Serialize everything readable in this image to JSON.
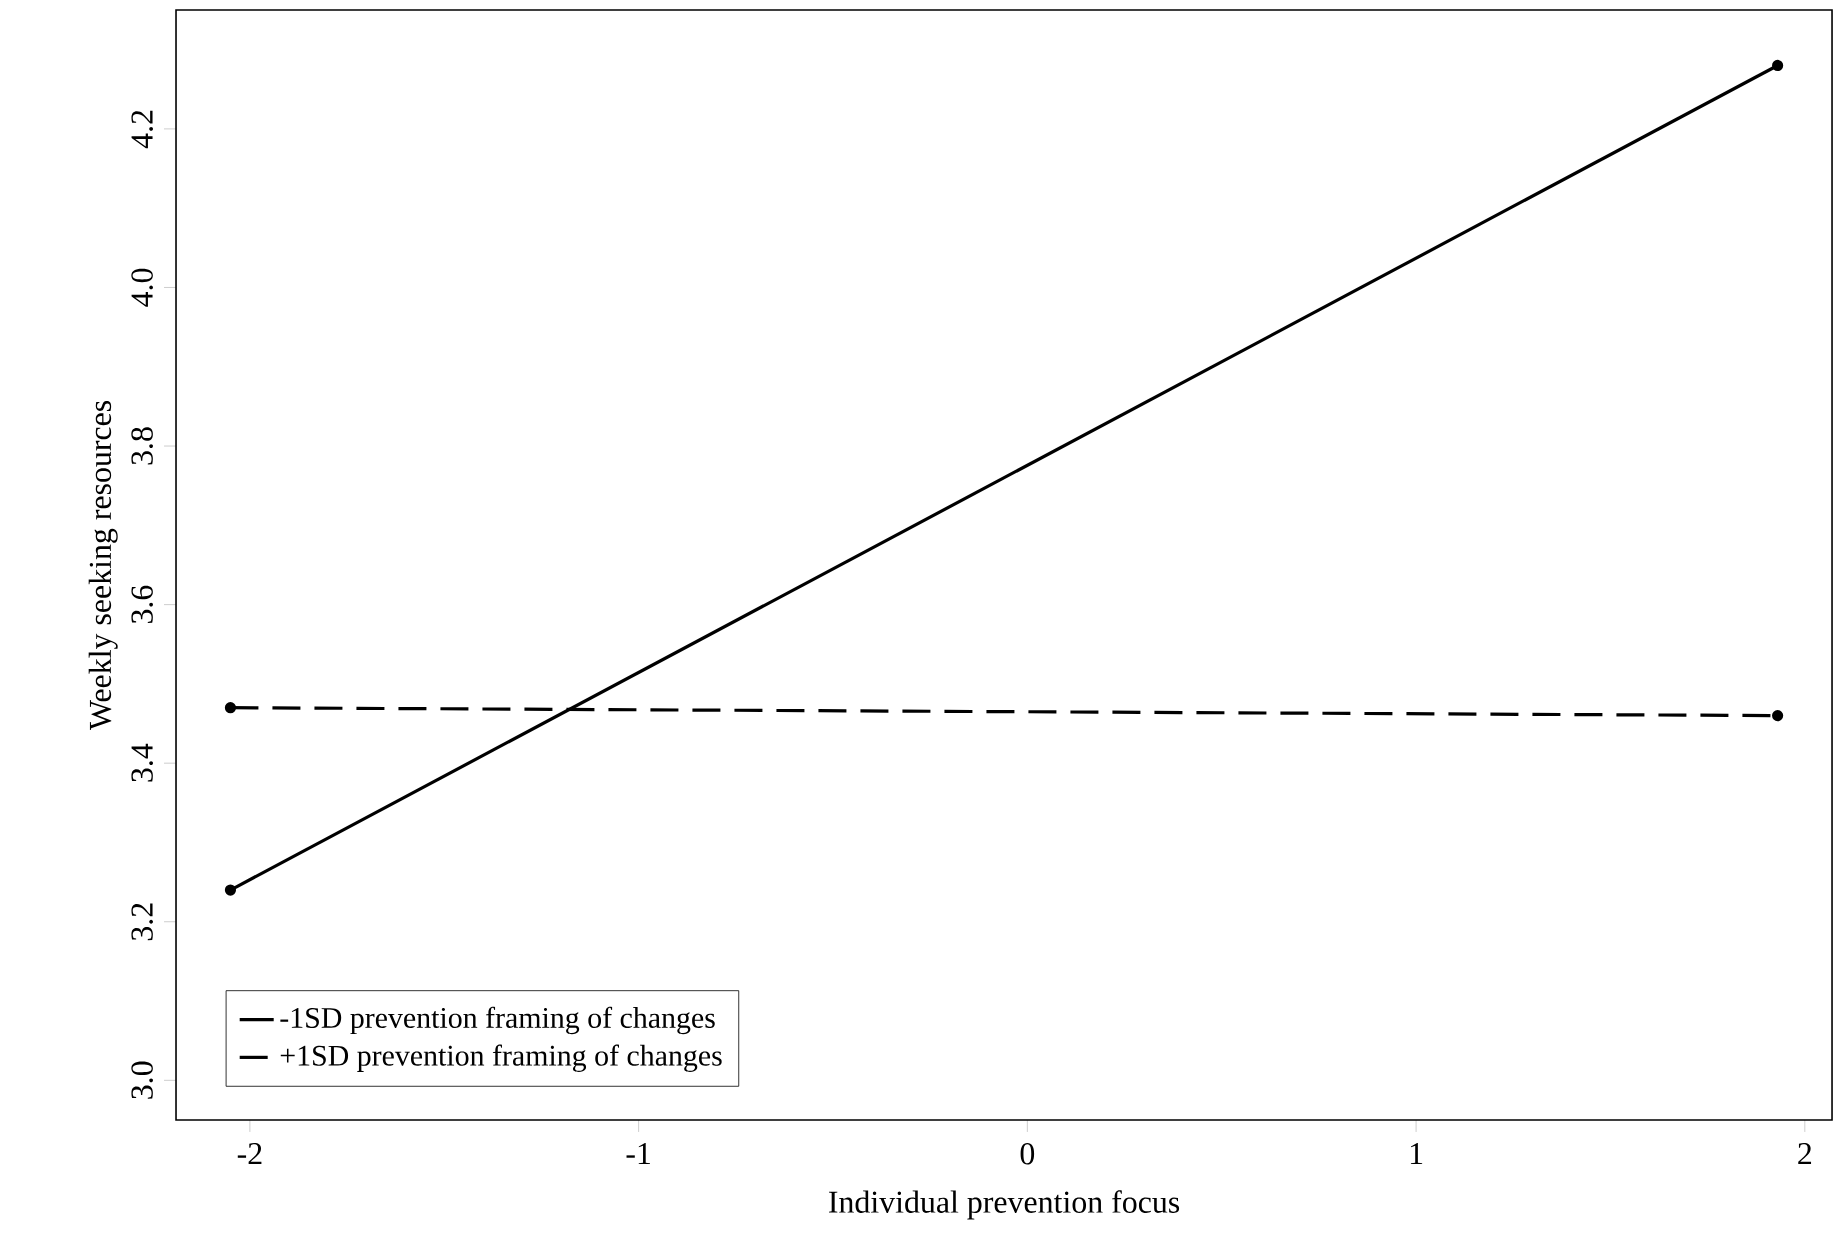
{
  "chart_data": {
    "type": "line",
    "xlabel": "Individual prevention focus",
    "ylabel": "Weekly seeking resources",
    "x": [
      -2.05,
      1.93
    ],
    "series": [
      {
        "name": "-1SD prevention framing of changes",
        "color": "#000000",
        "line_style": "solid",
        "values": [
          3.24,
          4.28
        ]
      },
      {
        "name": "+1SD prevention framing of changes",
        "color": "#000000",
        "line_style": "dashed",
        "values": [
          3.47,
          3.46
        ]
      }
    ],
    "xlim": [
      -2.19,
      2.07
    ],
    "ylim": [
      2.95,
      4.35
    ],
    "xticks": [
      -2,
      -1,
      0,
      1,
      2
    ],
    "yticks": [
      {
        "value": 3.0,
        "label": "3.0"
      },
      3.2,
      3.4,
      3.6,
      3.8,
      {
        "value": 4.0,
        "label": "4.0"
      },
      4.2
    ],
    "marker": "circle",
    "grid": false,
    "legend": "bottom left"
  }
}
